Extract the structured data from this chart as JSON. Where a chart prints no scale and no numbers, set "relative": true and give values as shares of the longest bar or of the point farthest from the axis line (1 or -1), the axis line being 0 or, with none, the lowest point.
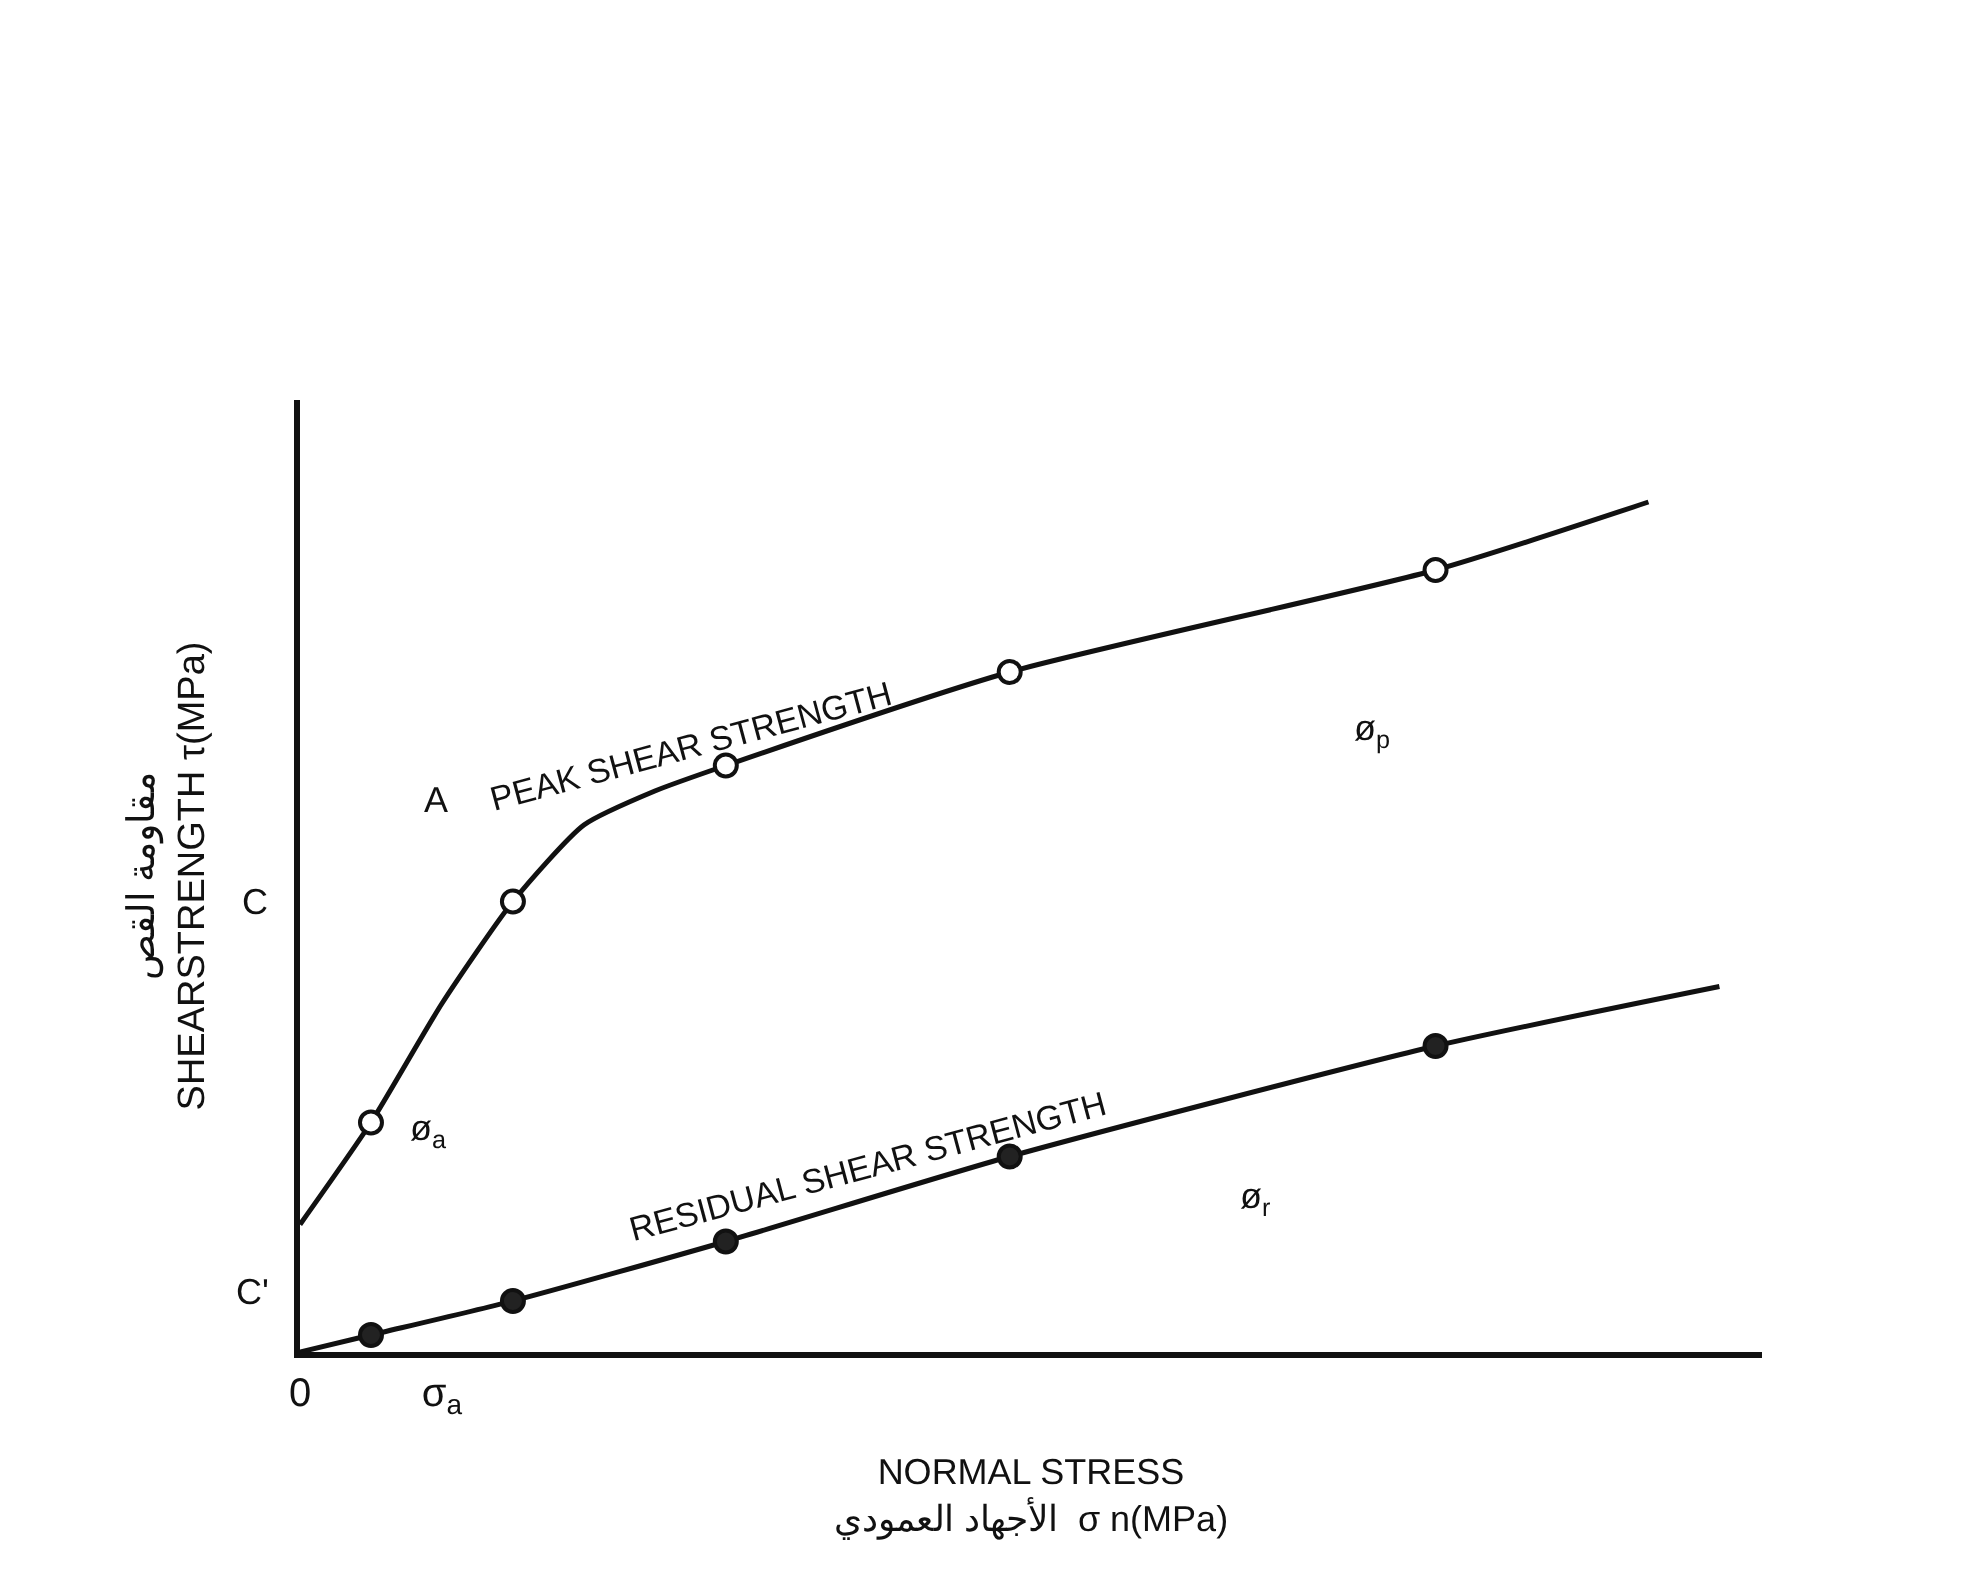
{
  "chart_data": {
    "type": "line",
    "relative": true,
    "xlabel": "NORMAL STRESS\nالأجهاد العمودي  σ n(MPa)",
    "ylabel": "مقاومة القص\nSHEARSTRENGTH τ(MPa)",
    "categories": [
      "0",
      null,
      "σ$_{a}$",
      null,
      null,
      null,
      null,
      null,
      null,
      null,
      null,
      null,
      null,
      null,
      null,
      null,
      null,
      null,
      null,
      null,
      null
    ],
    "series": [
      {
        "name": "PEAK SHEAR STRENGTH",
        "color": "#111111",
        "values": [
          0.15,
          0.27,
          0.41,
          0.53,
          0.62,
          0.66,
          0.69,
          null,
          null,
          null,
          0.8,
          null,
          null,
          null,
          null,
          null,
          0.92,
          null,
          null,
          1,
          null
        ]
      },
      {
        "name": "RESIDUAL SHEAR STRENGTH",
        "color": "#111111",
        "values": [
          0,
          0.02,
          null,
          0.06,
          null,
          null,
          0.13,
          null,
          null,
          null,
          0.23,
          null,
          null,
          null,
          null,
          null,
          0.36,
          null,
          null,
          null,
          0.43
        ]
      },
      {
        "type": "scatter",
        "marker": "circle",
        "color": "#ffffff",
        "values": [
          null,
          0.27,
          null,
          0.53,
          null,
          null,
          0.69,
          null,
          null,
          null,
          0.8,
          null,
          null,
          null,
          null,
          null,
          0.92,
          null,
          null,
          null,
          null
        ]
      },
      {
        "type": "scatter",
        "marker": "circle",
        "color": "#222222",
        "values": [
          null,
          0.02,
          null,
          0.06,
          null,
          null,
          0.13,
          null,
          null,
          null,
          0.23,
          null,
          null,
          null,
          null,
          null,
          0.36,
          null,
          null,
          null,
          null
        ]
      }
    ],
    "annotations": [
      "C",
      "C'",
      "ø$_{a}$",
      "A",
      "ø$_{p}$",
      "ø$_{r}$"
    ],
    "grid": false,
    "legend": false,
    "line_style": "solid"
  }
}
